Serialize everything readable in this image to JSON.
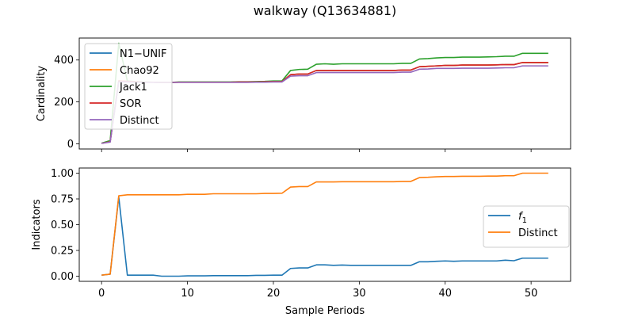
{
  "figure": {
    "title": "walkway (Q13634881)"
  },
  "chart_data": [
    {
      "type": "line",
      "ylabel": "Cardinality",
      "xlabel": "",
      "xlim": [
        -2.6,
        54.6
      ],
      "ylim": [
        -25,
        505
      ],
      "xticks": [
        0,
        10,
        20,
        30,
        40,
        50
      ],
      "yticks": [
        0,
        200,
        400
      ],
      "ytick_labels": [
        "0",
        "200",
        "400"
      ],
      "grid": false,
      "legend_position": "upper-left",
      "x": [
        0,
        1,
        2,
        3,
        4,
        5,
        6,
        7,
        8,
        9,
        10,
        11,
        12,
        13,
        14,
        15,
        16,
        17,
        18,
        19,
        20,
        21,
        22,
        23,
        24,
        25,
        26,
        27,
        28,
        29,
        30,
        31,
        32,
        33,
        34,
        35,
        36,
        37,
        38,
        39,
        40,
        41,
        42,
        43,
        44,
        45,
        46,
        47,
        48,
        49,
        50,
        51,
        52
      ],
      "series": [
        {
          "name": "N1−UNIF",
          "color": "#1f77b4",
          "values": [
            2,
            10,
            300,
            298,
            296,
            294,
            294,
            293,
            293,
            294,
            294,
            294,
            294,
            294,
            294,
            294,
            295,
            295,
            295,
            296,
            297,
            297,
            330,
            333,
            333,
            350,
            350,
            350,
            350,
            350,
            350,
            350,
            350,
            350,
            350,
            352,
            352,
            368,
            370,
            372,
            374,
            374,
            376,
            376,
            376,
            376,
            377,
            378,
            378,
            388,
            388,
            388,
            388
          ]
        },
        {
          "name": "Chao92",
          "color": "#ff7f0e",
          "values": [
            2,
            10,
            300,
            298,
            296,
            294,
            294,
            293,
            293,
            294,
            294,
            294,
            294,
            294,
            294,
            294,
            295,
            295,
            295,
            296,
            297,
            297,
            330,
            333,
            333,
            350,
            350,
            350,
            350,
            350,
            350,
            350,
            350,
            350,
            350,
            352,
            352,
            368,
            370,
            372,
            374,
            374,
            376,
            376,
            376,
            376,
            377,
            378,
            378,
            388,
            388,
            388,
            388
          ]
        },
        {
          "name": "Jack1",
          "color": "#2ca02c",
          "values": [
            3,
            15,
            480,
            300,
            297,
            295,
            294,
            293,
            293,
            295,
            295,
            295,
            295,
            295,
            295,
            295,
            296,
            296,
            297,
            298,
            300,
            300,
            350,
            355,
            356,
            380,
            382,
            380,
            382,
            382,
            382,
            382,
            382,
            382,
            382,
            384,
            384,
            405,
            407,
            410,
            412,
            412,
            414,
            414,
            414,
            415,
            416,
            418,
            418,
            432,
            432,
            432,
            432
          ]
        },
        {
          "name": "SOR",
          "color": "#d62728",
          "values": [
            2,
            10,
            300,
            298,
            296,
            294,
            294,
            293,
            293,
            294,
            294,
            294,
            294,
            294,
            294,
            294,
            295,
            295,
            295,
            296,
            297,
            297,
            330,
            333,
            333,
            350,
            350,
            350,
            350,
            350,
            350,
            350,
            350,
            350,
            350,
            352,
            352,
            368,
            370,
            372,
            374,
            374,
            376,
            376,
            376,
            376,
            377,
            378,
            378,
            388,
            388,
            388,
            388
          ]
        },
        {
          "name": "Distinct",
          "color": "#9467bd",
          "values": [
            2,
            8,
            296,
            295,
            294,
            293,
            293,
            293,
            293,
            293,
            293,
            293,
            293,
            293,
            293,
            293,
            293,
            293,
            294,
            294,
            295,
            295,
            323,
            325,
            325,
            340,
            340,
            340,
            340,
            340,
            340,
            340,
            340,
            340,
            340,
            342,
            342,
            356,
            357,
            360,
            360,
            360,
            361,
            361,
            361,
            361,
            362,
            363,
            363,
            372,
            372,
            372,
            372
          ]
        }
      ]
    },
    {
      "type": "line",
      "ylabel": "Indicators",
      "xlabel": "Sample Periods",
      "xlim": [
        -2.6,
        54.6
      ],
      "ylim": [
        -0.05,
        1.05
      ],
      "xticks": [
        0,
        10,
        20,
        30,
        40,
        50
      ],
      "xtick_labels": [
        "0",
        "10",
        "20",
        "30",
        "40",
        "50"
      ],
      "yticks": [
        0,
        0.25,
        0.5,
        0.75,
        1.0
      ],
      "ytick_labels": [
        "0.00",
        "0.25",
        "0.50",
        "0.75",
        "1.00"
      ],
      "grid": false,
      "legend_position": "center-right",
      "x": [
        0,
        1,
        2,
        3,
        4,
        5,
        6,
        7,
        8,
        9,
        10,
        11,
        12,
        13,
        14,
        15,
        16,
        17,
        18,
        19,
        20,
        21,
        22,
        23,
        24,
        25,
        26,
        27,
        28,
        29,
        30,
        31,
        32,
        33,
        34,
        35,
        36,
        37,
        38,
        39,
        40,
        41,
        42,
        43,
        44,
        45,
        46,
        47,
        48,
        49,
        50,
        51,
        52
      ],
      "series": [
        {
          "name": "f1",
          "color": "#1f77b4",
          "values": [
            0.01,
            0.02,
            0.77,
            0.01,
            0.01,
            0.01,
            0.01,
            0.0,
            0.0,
            0.0,
            0.003,
            0.003,
            0.003,
            0.005,
            0.005,
            0.005,
            0.005,
            0.005,
            0.008,
            0.008,
            0.01,
            0.01,
            0.075,
            0.08,
            0.08,
            0.11,
            0.11,
            0.105,
            0.108,
            0.105,
            0.105,
            0.105,
            0.105,
            0.105,
            0.105,
            0.105,
            0.105,
            0.14,
            0.14,
            0.145,
            0.148,
            0.145,
            0.148,
            0.148,
            0.148,
            0.148,
            0.148,
            0.155,
            0.15,
            0.175,
            0.175,
            0.175,
            0.175
          ]
        },
        {
          "name": "Distinct",
          "color": "#ff7f0e",
          "values": [
            0.01,
            0.02,
            0.78,
            0.79,
            0.79,
            0.79,
            0.79,
            0.79,
            0.79,
            0.79,
            0.795,
            0.795,
            0.795,
            0.8,
            0.8,
            0.8,
            0.8,
            0.8,
            0.8,
            0.803,
            0.803,
            0.805,
            0.865,
            0.87,
            0.87,
            0.915,
            0.915,
            0.915,
            0.917,
            0.917,
            0.917,
            0.917,
            0.917,
            0.917,
            0.917,
            0.92,
            0.92,
            0.957,
            0.96,
            0.965,
            0.968,
            0.968,
            0.97,
            0.97,
            0.97,
            0.972,
            0.972,
            0.975,
            0.975,
            1.0,
            1.0,
            1.0,
            1.0
          ]
        }
      ]
    }
  ]
}
